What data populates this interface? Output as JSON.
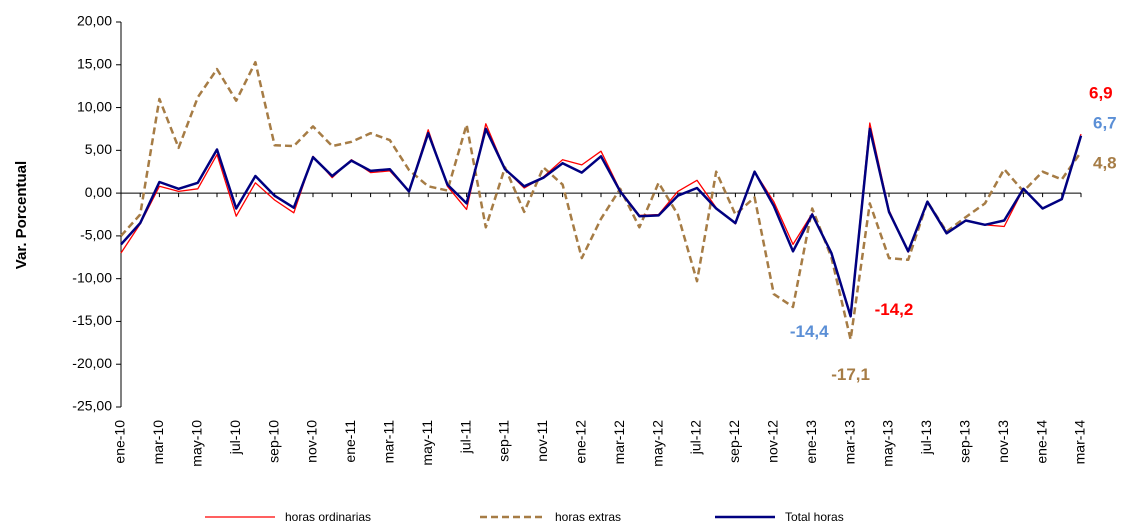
{
  "chart_data": {
    "type": "line",
    "y_label": "Var. Porcentual",
    "categories": [
      "ene-10",
      null,
      "mar-10",
      null,
      "may-10",
      null,
      "jul-10",
      null,
      "sep-10",
      null,
      "nov-10",
      null,
      "ene-11",
      null,
      "mar-11",
      null,
      "may-11",
      null,
      "jul-11",
      null,
      "sep-11",
      null,
      "nov-11",
      null,
      "ene-12",
      null,
      "mar-12",
      null,
      "may-12",
      null,
      "jul-12",
      null,
      "sep-12",
      null,
      "nov-12",
      null,
      "ene-13",
      null,
      "mar-13",
      null,
      "may-13",
      null,
      "jul-13",
      null,
      "sep-13",
      null,
      "nov-13",
      null,
      "ene-14",
      null,
      "mar-14"
    ],
    "ylim": [
      -25,
      20
    ],
    "yticks": [
      {
        "value": -25,
        "label": "-25,00"
      },
      {
        "value": -20,
        "label": "-20,00"
      },
      {
        "value": -15,
        "label": "-15,00"
      },
      {
        "value": -10,
        "label": "-10,00"
      },
      {
        "value": -5,
        "label": "-5,00"
      },
      {
        "value": 0,
        "label": "0,00"
      },
      {
        "value": 5,
        "label": "5,00"
      },
      {
        "value": 10,
        "label": "10,00"
      },
      {
        "value": 15,
        "label": "15,00"
      },
      {
        "value": 20,
        "label": "20,00"
      }
    ],
    "grid": false,
    "series": [
      {
        "name": "horas ordinarias",
        "color": "#ff0000",
        "dash": false,
        "width": 1.3,
        "values": [
          -7.0,
          -3.6,
          0.8,
          0.2,
          0.5,
          4.5,
          -2.7,
          1.2,
          -0.8,
          -2.3,
          4.3,
          1.8,
          3.9,
          2.4,
          2.6,
          0.2,
          7.4,
          0.8,
          -1.9,
          8.1,
          2.8,
          0.6,
          1.9,
          3.9,
          3.3,
          4.9,
          0.3,
          -2.6,
          -2.5,
          0.2,
          1.5,
          -1.7,
          -3.6,
          2.5,
          -1.0,
          -6.0,
          -2.4,
          -7.0,
          -14.2,
          8.2,
          -2.0,
          -6.9,
          -1.0,
          -4.7,
          -3.2,
          -3.7,
          -3.9,
          0.5,
          -1.8,
          -0.7,
          6.9
        ],
        "value_labels": [
          null,
          null,
          null,
          null,
          null,
          null,
          null,
          null,
          null,
          null,
          null,
          null,
          null,
          null,
          null,
          null,
          null,
          null,
          null,
          null,
          null,
          null,
          null,
          null,
          null,
          null,
          null,
          null,
          null,
          null,
          null,
          null,
          null,
          null,
          null,
          null,
          null,
          null,
          "-14,2",
          null,
          null,
          null,
          null,
          null,
          null,
          null,
          null,
          null,
          null,
          null,
          "6,9"
        ]
      },
      {
        "name": "horas extras",
        "color": "#a67c45",
        "dash": true,
        "width": 2.5,
        "values": [
          -5.0,
          -2.5,
          11.0,
          5.3,
          11.2,
          14.5,
          10.8,
          15.3,
          5.6,
          5.5,
          7.8,
          5.5,
          6.0,
          7.0,
          6.2,
          2.7,
          0.8,
          0.3,
          8.0,
          -4.0,
          3.0,
          -2.2,
          3.0,
          1.0,
          -7.6,
          -3.0,
          0.5,
          -4.0,
          1.2,
          -2.5,
          -10.3,
          2.5,
          -2.5,
          -0.5,
          -11.8,
          -13.3,
          -1.8,
          -7.5,
          -17.1,
          -1.2,
          -7.6,
          -7.8,
          -1.0,
          -4.5,
          -2.8,
          -1.2,
          2.8,
          0.2,
          2.5,
          1.6,
          4.8
        ],
        "value_labels": [
          null,
          null,
          null,
          null,
          null,
          null,
          null,
          null,
          null,
          null,
          null,
          null,
          null,
          null,
          null,
          null,
          null,
          null,
          null,
          null,
          null,
          null,
          null,
          null,
          null,
          null,
          null,
          null,
          null,
          null,
          null,
          null,
          null,
          null,
          null,
          null,
          null,
          null,
          "-17,1",
          null,
          null,
          null,
          null,
          null,
          null,
          null,
          null,
          null,
          null,
          null,
          "4,8"
        ]
      },
      {
        "name": "Total horas",
        "color": "#000080",
        "dash": false,
        "width": 2.5,
        "values": [
          -6.0,
          -3.5,
          1.3,
          0.5,
          1.2,
          5.1,
          -1.8,
          2.0,
          -0.3,
          -1.7,
          4.2,
          2.0,
          3.8,
          2.6,
          2.8,
          0.2,
          7.0,
          1.0,
          -1.2,
          7.5,
          2.8,
          0.8,
          1.8,
          3.5,
          2.4,
          4.3,
          0.2,
          -2.7,
          -2.6,
          -0.3,
          0.6,
          -1.8,
          -3.5,
          2.5,
          -1.5,
          -6.8,
          -2.5,
          -7.0,
          -14.4,
          7.5,
          -2.2,
          -6.8,
          -1.0,
          -4.7,
          -3.2,
          -3.7,
          -3.2,
          0.5,
          -1.8,
          -0.7,
          6.7
        ],
        "value_labels": [
          null,
          null,
          null,
          null,
          null,
          null,
          null,
          null,
          null,
          null,
          null,
          null,
          null,
          null,
          null,
          null,
          null,
          null,
          null,
          null,
          null,
          null,
          null,
          null,
          null,
          null,
          null,
          null,
          null,
          null,
          null,
          null,
          null,
          null,
          null,
          null,
          null,
          null,
          "-14,4",
          null,
          null,
          null,
          null,
          null,
          null,
          null,
          null,
          null,
          null,
          null,
          "6,7"
        ]
      }
    ]
  }
}
